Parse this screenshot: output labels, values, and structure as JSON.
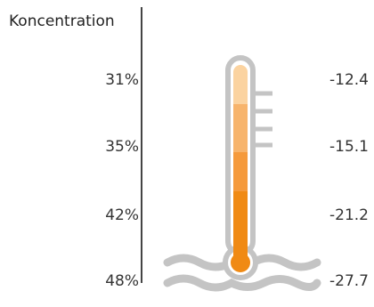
{
  "header": {
    "label": "Koncentration"
  },
  "rows": [
    {
      "concentration": "31%",
      "temperature": "-12.4"
    },
    {
      "concentration": "35%",
      "temperature": "-15.1"
    },
    {
      "concentration": "42%",
      "temperature": "-21.2"
    },
    {
      "concentration": "48%",
      "temperature": "-27.7"
    }
  ],
  "colors": {
    "tube_outline": "#c4c4c4",
    "segment_1": "#fbd3a0",
    "segment_2": "#f7b46c",
    "segment_3": "#f59a3c",
    "segment_4": "#f08a14",
    "bulb": "#f08a14",
    "waves": "#c4c4c4",
    "divider": "#444444"
  }
}
